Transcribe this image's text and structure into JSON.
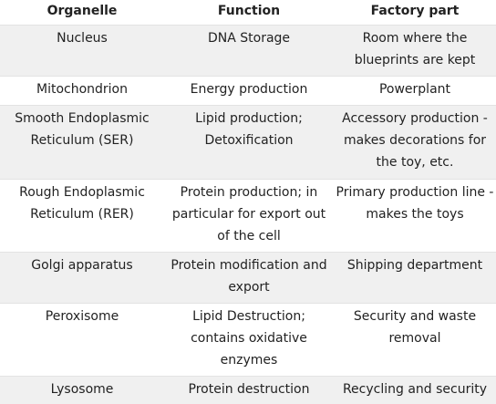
{
  "table": {
    "headers": [
      "Organelle",
      "Function",
      "Factory part"
    ],
    "rows": [
      [
        "Nucleus",
        "DNA Storage",
        "Room where the blueprints are kept"
      ],
      [
        "Mitochondrion",
        "Energy production",
        "Powerplant"
      ],
      [
        "Smooth Endoplasmic Reticulum (SER)",
        "Lipid production; Detoxification",
        "Accessory production - makes decorations for the toy, etc."
      ],
      [
        "Rough Endoplasmic Reticulum (RER)",
        "Protein production; in particular for export out of the cell",
        "Primary production line - makes the toys"
      ],
      [
        "Golgi apparatus",
        "Protein modification and export",
        "Shipping department"
      ],
      [
        "Peroxisome",
        "Lipid Destruction; contains oxidative enzymes",
        "Security and waste removal"
      ],
      [
        "Lysosome",
        "Protein destruction",
        "Recycling and security"
      ]
    ]
  }
}
